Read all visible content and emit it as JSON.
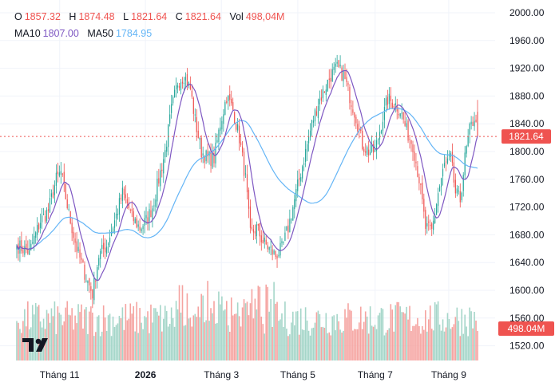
{
  "legend": {
    "o_label": "O",
    "o_value": "1857.32",
    "h_label": "H",
    "h_value": "1874.48",
    "l_label": "L",
    "l_value": "1821.64",
    "c_label": "C",
    "c_value": "1821.64",
    "vol_label": "Vol",
    "vol_value": "498,04M",
    "ma10_label": "MA10",
    "ma10_value": "1807.00",
    "ma50_label": "MA50",
    "ma50_value": "1784.95"
  },
  "colors": {
    "up": "#26a69a",
    "down": "#ef5350",
    "up_volume": "#a5d6c9",
    "down_volume": "#f5a3a0",
    "ma10": "#7e57c2",
    "ma50": "#64b5f6",
    "price_line": "#ef5350"
  },
  "chart_data": {
    "type": "candlestick",
    "title": "",
    "ylim": [
      1500,
      2010
    ],
    "y_ticks": [
      2000,
      1960,
      1920,
      1880,
      1840,
      1800,
      1760,
      1720,
      1680,
      1640,
      1600,
      1560,
      1520
    ],
    "x_tick_labels": [
      {
        "label": "Tháng 11",
        "bold": false,
        "frac": 0.1
      },
      {
        "label": "2026",
        "bold": true,
        "frac": 0.283
      },
      {
        "label": "Tháng 3",
        "bold": false,
        "frac": 0.445
      },
      {
        "label": "Tháng 5",
        "bold": false,
        "frac": 0.608
      },
      {
        "label": "Tháng 7",
        "bold": false,
        "frac": 0.773
      },
      {
        "label": "Tháng 9",
        "bold": false,
        "frac": 0.93
      }
    ],
    "last_price": 1821.64,
    "last_price_label": "1821.64",
    "last_volume_label": "498.04M",
    "volume_scale_max": 1200,
    "close_anchors": [
      [
        0,
        1665
      ],
      [
        8,
        1655
      ],
      [
        15,
        1700
      ],
      [
        20,
        1715
      ],
      [
        25,
        1760
      ],
      [
        28,
        1770
      ],
      [
        33,
        1710
      ],
      [
        38,
        1660
      ],
      [
        43,
        1625
      ],
      [
        48,
        1595
      ],
      [
        52,
        1650
      ],
      [
        57,
        1665
      ],
      [
        62,
        1700
      ],
      [
        67,
        1740
      ],
      [
        70,
        1725
      ],
      [
        73,
        1705
      ],
      [
        78,
        1690
      ],
      [
        82,
        1700
      ],
      [
        86,
        1720
      ],
      [
        90,
        1760
      ],
      [
        94,
        1800
      ],
      [
        98,
        1860
      ],
      [
        102,
        1900
      ],
      [
        106,
        1910
      ],
      [
        110,
        1890
      ],
      [
        113,
        1845
      ],
      [
        117,
        1800
      ],
      [
        121,
        1790
      ],
      [
        125,
        1790
      ],
      [
        129,
        1840
      ],
      [
        133,
        1880
      ],
      [
        137,
        1860
      ],
      [
        141,
        1820
      ],
      [
        145,
        1760
      ],
      [
        148,
        1680
      ],
      [
        152,
        1690
      ],
      [
        156,
        1670
      ],
      [
        160,
        1660
      ],
      [
        164,
        1650
      ],
      [
        168,
        1660
      ],
      [
        172,
        1690
      ],
      [
        175,
        1720
      ],
      [
        179,
        1760
      ],
      [
        183,
        1800
      ],
      [
        187,
        1840
      ],
      [
        191,
        1870
      ],
      [
        195,
        1890
      ],
      [
        199,
        1910
      ],
      [
        203,
        1920
      ],
      [
        207,
        1910
      ],
      [
        211,
        1880
      ],
      [
        215,
        1850
      ],
      [
        219,
        1810
      ],
      [
        223,
        1800
      ],
      [
        227,
        1800
      ],
      [
        231,
        1840
      ],
      [
        235,
        1875
      ],
      [
        239,
        1870
      ],
      [
        243,
        1860
      ],
      [
        247,
        1830
      ],
      [
        251,
        1810
      ],
      [
        255,
        1760
      ],
      [
        259,
        1690
      ],
      [
        263,
        1685
      ],
      [
        267,
        1740
      ],
      [
        271,
        1780
      ],
      [
        275,
        1790
      ],
      [
        278,
        1740
      ],
      [
        281,
        1730
      ],
      [
        284,
        1790
      ],
      [
        287,
        1830
      ],
      [
        290,
        1850
      ],
      [
        292,
        1821.64
      ]
    ]
  }
}
